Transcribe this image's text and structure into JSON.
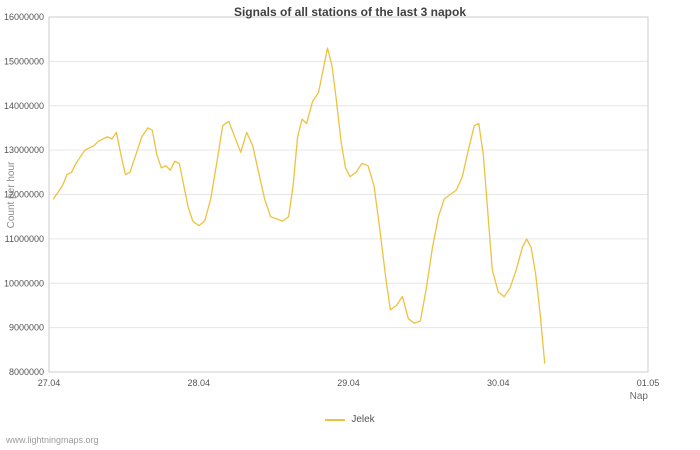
{
  "watermark": "www.lightningmaps.org",
  "chart_data": {
    "type": "line",
    "title": "Signals of all stations of the last 3 napok",
    "xlabel": "Nap",
    "ylabel": "Count per hour",
    "xlim": [
      0,
      4
    ],
    "ylim": [
      8000000,
      16000000
    ],
    "x_ticks": [
      "27.04",
      "28.04",
      "29.04",
      "30.04",
      "01.05"
    ],
    "x_tick_positions": [
      0,
      1,
      2,
      3,
      4
    ],
    "y_ticks": [
      8000000,
      9000000,
      10000000,
      11000000,
      12000000,
      13000000,
      14000000,
      15000000,
      16000000
    ],
    "grid": "horizontal",
    "colors": {
      "line": "#edc240",
      "grid": "#e6e6e6",
      "border": "#cccccc",
      "tick_text": "#545454"
    },
    "legend": {
      "position": "bottom-center",
      "entries": [
        {
          "label": "Jelek",
          "color": "#edc240"
        }
      ]
    },
    "series": [
      {
        "name": "Jelek",
        "color": "#edc240",
        "x": [
          0.03,
          0.06,
          0.09,
          0.12,
          0.15,
          0.18,
          0.21,
          0.24,
          0.27,
          0.3,
          0.33,
          0.36,
          0.39,
          0.42,
          0.45,
          0.48,
          0.51,
          0.54,
          0.58,
          0.62,
          0.66,
          0.69,
          0.72,
          0.75,
          0.78,
          0.81,
          0.84,
          0.87,
          0.9,
          0.93,
          0.96,
          1.0,
          1.04,
          1.08,
          1.12,
          1.16,
          1.2,
          1.24,
          1.28,
          1.32,
          1.36,
          1.4,
          1.44,
          1.48,
          1.52,
          1.56,
          1.6,
          1.63,
          1.66,
          1.69,
          1.72,
          1.76,
          1.8,
          1.83,
          1.86,
          1.89,
          1.92,
          1.95,
          1.98,
          2.01,
          2.05,
          2.09,
          2.13,
          2.17,
          2.21,
          2.25,
          2.28,
          2.32,
          2.36,
          2.4,
          2.44,
          2.48,
          2.52,
          2.56,
          2.6,
          2.64,
          2.68,
          2.72,
          2.76,
          2.8,
          2.84,
          2.87,
          2.9,
          2.93,
          2.96,
          3.0,
          3.04,
          3.08,
          3.12,
          3.16,
          3.19,
          3.22,
          3.25,
          3.28,
          3.31
        ],
        "y": [
          11900000,
          12050000,
          12200000,
          12450000,
          12500000,
          12700000,
          12850000,
          13000000,
          13050000,
          13100000,
          13200000,
          13250000,
          13300000,
          13250000,
          13400000,
          12900000,
          12450000,
          12500000,
          12900000,
          13300000,
          13500000,
          13450000,
          12900000,
          12600000,
          12650000,
          12550000,
          12750000,
          12700000,
          12200000,
          11700000,
          11400000,
          11300000,
          11400000,
          11900000,
          12700000,
          13550000,
          13650000,
          13300000,
          12950000,
          13400000,
          13100000,
          12500000,
          11900000,
          11500000,
          11450000,
          11400000,
          11500000,
          12200000,
          13300000,
          13700000,
          13600000,
          14100000,
          14300000,
          14800000,
          15300000,
          14900000,
          14100000,
          13200000,
          12600000,
          12400000,
          12500000,
          12700000,
          12650000,
          12200000,
          11200000,
          10100000,
          9400000,
          9500000,
          9700000,
          9200000,
          9100000,
          9150000,
          9900000,
          10800000,
          11500000,
          11900000,
          12000000,
          12100000,
          12400000,
          13000000,
          13550000,
          13600000,
          12900000,
          11600000,
          10300000,
          9800000,
          9700000,
          9900000,
          10300000,
          10800000,
          11000000,
          10800000,
          10200000,
          9300000,
          8200000
        ]
      }
    ]
  }
}
